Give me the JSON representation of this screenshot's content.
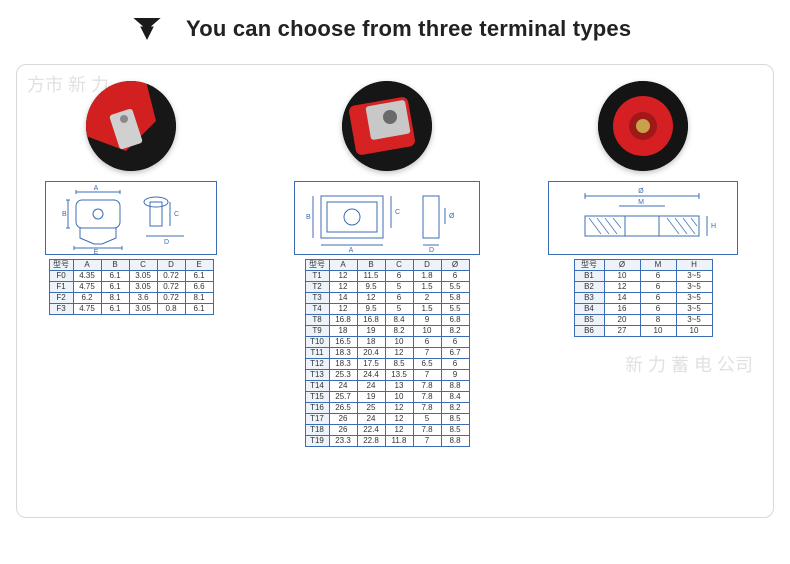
{
  "header": {
    "title": "You can choose from three terminal types",
    "arrow_color": "#1a1a1a"
  },
  "panel": {
    "border_color": "#d9d9d9",
    "table_border_color": "#3b6db4",
    "header_fill": "#eef3fa"
  },
  "terminal_a": {
    "model_header": "型号",
    "columns": [
      "A",
      "B",
      "C",
      "D",
      "E"
    ],
    "rows": [
      {
        "k": "F0",
        "v": [
          "4.35",
          "6.1",
          "3.05",
          "0.72",
          "6.1"
        ]
      },
      {
        "k": "F1",
        "v": [
          "4.75",
          "6.1",
          "3.05",
          "0.72",
          "6.6"
        ]
      },
      {
        "k": "F2",
        "v": [
          "6.2",
          "8.1",
          "3.6",
          "0.72",
          "8.1"
        ]
      },
      {
        "k": "F3",
        "v": [
          "4.75",
          "6.1",
          "3.05",
          "0.8",
          "6.1"
        ]
      }
    ],
    "photo_colors": {
      "bg": "#171717",
      "red": "#d21f1f",
      "metal": "#d0d0d0"
    }
  },
  "terminal_b": {
    "model_header": "型号",
    "columns": [
      "A",
      "B",
      "C",
      "D",
      "Ø"
    ],
    "rows": [
      {
        "k": "T1",
        "v": [
          "12",
          "11.5",
          "6",
          "1.8",
          "6"
        ]
      },
      {
        "k": "T2",
        "v": [
          "12",
          "9.5",
          "5",
          "1.5",
          "5.5"
        ]
      },
      {
        "k": "T3",
        "v": [
          "14",
          "12",
          "6",
          "2",
          "5.8"
        ]
      },
      {
        "k": "T4",
        "v": [
          "12",
          "9.5",
          "5",
          "1.5",
          "5.5"
        ]
      },
      {
        "k": "T8",
        "v": [
          "16.8",
          "16.8",
          "8.4",
          "9",
          "6.8"
        ]
      },
      {
        "k": "T9",
        "v": [
          "18",
          "19",
          "8.2",
          "10",
          "8.2"
        ]
      },
      {
        "k": "T10",
        "v": [
          "16.5",
          "18",
          "10",
          "6",
          "6"
        ]
      },
      {
        "k": "T11",
        "v": [
          "18.3",
          "20.4",
          "12",
          "7",
          "6.7"
        ]
      },
      {
        "k": "T12",
        "v": [
          "18.3",
          "17.5",
          "8.5",
          "6.5",
          "6"
        ]
      },
      {
        "k": "T13",
        "v": [
          "25.3",
          "24.4",
          "13.5",
          "7",
          "9"
        ]
      },
      {
        "k": "T14",
        "v": [
          "24",
          "24",
          "13",
          "7.8",
          "8.8"
        ]
      },
      {
        "k": "T15",
        "v": [
          "25.7",
          "19",
          "10",
          "7.8",
          "8.4"
        ]
      },
      {
        "k": "T16",
        "v": [
          "26.5",
          "25",
          "12",
          "7.8",
          "8.2"
        ]
      },
      {
        "k": "T17",
        "v": [
          "26",
          "24",
          "12",
          "5",
          "8.5"
        ]
      },
      {
        "k": "T18",
        "v": [
          "26",
          "22.4",
          "12",
          "7.8",
          "8.5"
        ]
      },
      {
        "k": "T19",
        "v": [
          "23.3",
          "22.8",
          "11.8",
          "7",
          "8.8"
        ]
      }
    ],
    "photo_colors": {
      "bg": "#161616",
      "red": "#d62222",
      "metal": "#c8c8c8"
    }
  },
  "terminal_c": {
    "model_header": "型号",
    "columns": [
      "Ø",
      "M",
      "H"
    ],
    "rows": [
      {
        "k": "B1",
        "v": [
          "10",
          "6",
          "3~5"
        ]
      },
      {
        "k": "B2",
        "v": [
          "12",
          "6",
          "3~5"
        ]
      },
      {
        "k": "B3",
        "v": [
          "14",
          "6",
          "3~5"
        ]
      },
      {
        "k": "B4",
        "v": [
          "16",
          "6",
          "3~5"
        ]
      },
      {
        "k": "B5",
        "v": [
          "20",
          "8",
          "3~5"
        ]
      },
      {
        "k": "B6",
        "v": [
          "27",
          "10",
          "10"
        ]
      }
    ],
    "photo_colors": {
      "bg": "#141414",
      "red": "#d51f22",
      "brass": "#c8a24a"
    }
  }
}
